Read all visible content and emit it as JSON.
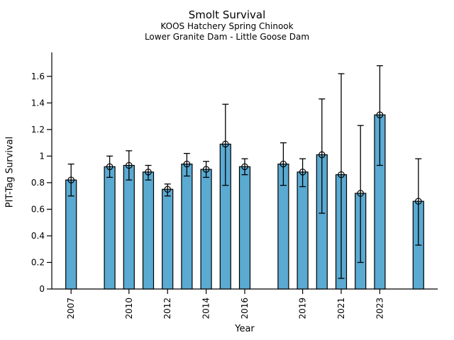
{
  "chart_data": {
    "type": "bar",
    "title": "Smolt Survival",
    "subtitle1": "KOOS Hatchery Spring Chinook",
    "subtitle2": "Lower Granite Dam - Little Goose Dam",
    "xlabel": "Year",
    "ylabel": "PIT-Tag Survival",
    "categories": [
      2007,
      2009,
      2010,
      2011,
      2012,
      2013,
      2014,
      2015,
      2016,
      2018,
      2019,
      2020,
      2021,
      2022,
      2023,
      2025
    ],
    "values": [
      0.82,
      0.92,
      0.93,
      0.88,
      0.75,
      0.94,
      0.9,
      1.09,
      0.92,
      0.94,
      0.88,
      1.01,
      0.86,
      0.72,
      1.31,
      0.66
    ],
    "error_low": [
      0.7,
      0.84,
      0.82,
      0.82,
      0.7,
      0.85,
      0.84,
      0.78,
      0.86,
      0.78,
      0.77,
      0.57,
      0.08,
      0.2,
      0.93,
      0.33
    ],
    "error_high": [
      0.94,
      1.0,
      1.04,
      0.93,
      0.79,
      1.02,
      0.96,
      1.39,
      0.98,
      1.1,
      0.98,
      1.43,
      1.62,
      1.23,
      1.68,
      0.98
    ],
    "xticks": {
      "values": [
        2007,
        2010,
        2012,
        2014,
        2016,
        2019,
        2021,
        2023
      ],
      "labels": [
        "2007",
        "2010",
        "2012",
        "2014",
        "2016",
        "2019",
        "2021",
        "2023"
      ]
    },
    "yticks": {
      "values": [
        0,
        0.2,
        0.4,
        0.6,
        0.8,
        1,
        1.2,
        1.4,
        1.6
      ],
      "labels": [
        "0",
        "0.2",
        "0.4",
        "0.6",
        "0.8",
        "1",
        "1.2",
        "1.4",
        "1.6"
      ]
    },
    "xlim": [
      2006,
      2026
    ],
    "ylim": [
      0,
      1.78
    ],
    "grid": false,
    "legend": null,
    "bar_color": "#5aaad2",
    "edge_color": "#000000",
    "error_color": "#000000",
    "marker": "open-circle"
  }
}
